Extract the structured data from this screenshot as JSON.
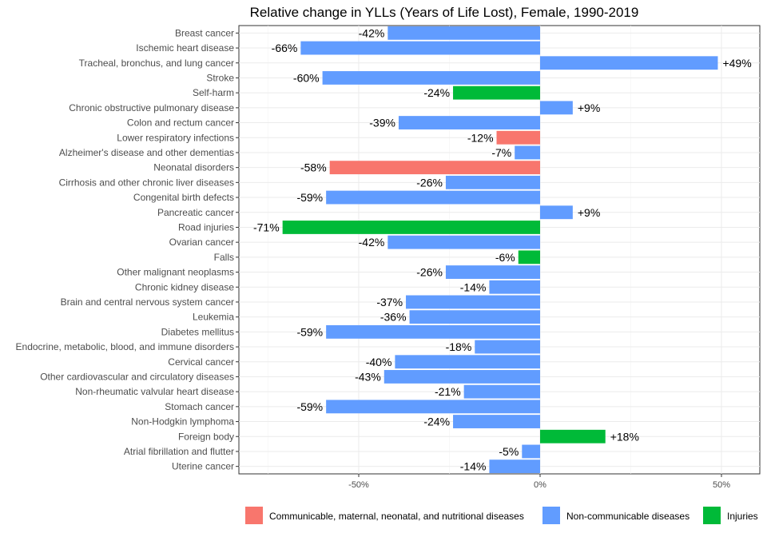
{
  "chart_data": {
    "type": "bar",
    "orientation": "horizontal",
    "title": "Relative change in YLLs (Years of Life Lost), Female, 1990-2019",
    "xlabel": "",
    "ylabel": "",
    "xlim": [
      -84,
      61
    ],
    "x_ticks": [
      -50,
      0,
      50
    ],
    "x_tick_labels": [
      "-50%",
      "0%",
      "50%"
    ],
    "grid": true,
    "legend_position": "bottom-right",
    "legend": [
      {
        "key": "cmnn",
        "label": "Communicable, maternal, neonatal, and nutritional diseases",
        "color": "#F8766D"
      },
      {
        "key": "ncd",
        "label": "Non-communicable diseases",
        "color": "#619CFF"
      },
      {
        "key": "inj",
        "label": "Injuries",
        "color": "#00BA38"
      }
    ],
    "bars": [
      {
        "category": "Breast cancer",
        "value": -42,
        "label": "-42%",
        "group": "ncd"
      },
      {
        "category": "Ischemic heart disease",
        "value": -66,
        "label": "-66%",
        "group": "ncd"
      },
      {
        "category": "Tracheal, bronchus, and lung cancer",
        "value": 49,
        "label": "+49%",
        "group": "ncd"
      },
      {
        "category": "Stroke",
        "value": -60,
        "label": "-60%",
        "group": "ncd"
      },
      {
        "category": "Self-harm",
        "value": -24,
        "label": "-24%",
        "group": "inj"
      },
      {
        "category": "Chronic obstructive pulmonary disease",
        "value": 9,
        "label": "+9%",
        "group": "ncd"
      },
      {
        "category": "Colon and rectum cancer",
        "value": -39,
        "label": "-39%",
        "group": "ncd"
      },
      {
        "category": "Lower respiratory infections",
        "value": -12,
        "label": "-12%",
        "group": "cmnn"
      },
      {
        "category": "Alzheimer's disease and other dementias",
        "value": -7,
        "label": "-7%",
        "group": "ncd"
      },
      {
        "category": "Neonatal disorders",
        "value": -58,
        "label": "-58%",
        "group": "cmnn"
      },
      {
        "category": "Cirrhosis and other chronic liver diseases",
        "value": -26,
        "label": "-26%",
        "group": "ncd"
      },
      {
        "category": "Congenital birth defects",
        "value": -59,
        "label": "-59%",
        "group": "ncd"
      },
      {
        "category": "Pancreatic cancer",
        "value": 9,
        "label": "+9%",
        "group": "ncd"
      },
      {
        "category": "Road injuries",
        "value": -71,
        "label": "-71%",
        "group": "inj"
      },
      {
        "category": "Ovarian cancer",
        "value": -42,
        "label": "-42%",
        "group": "ncd"
      },
      {
        "category": "Falls",
        "value": -6,
        "label": "-6%",
        "group": "inj"
      },
      {
        "category": "Other malignant neoplasms",
        "value": -26,
        "label": "-26%",
        "group": "ncd"
      },
      {
        "category": "Chronic kidney disease",
        "value": -14,
        "label": "-14%",
        "group": "ncd"
      },
      {
        "category": "Brain and central nervous system cancer",
        "value": -37,
        "label": "-37%",
        "group": "ncd"
      },
      {
        "category": "Leukemia",
        "value": -36,
        "label": "-36%",
        "group": "ncd"
      },
      {
        "category": "Diabetes mellitus",
        "value": -59,
        "label": "-59%",
        "group": "ncd"
      },
      {
        "category": "Endocrine, metabolic, blood, and immune disorders",
        "value": -18,
        "label": "-18%",
        "group": "ncd"
      },
      {
        "category": "Cervical cancer",
        "value": -40,
        "label": "-40%",
        "group": "ncd"
      },
      {
        "category": "Other cardiovascular and circulatory diseases",
        "value": -43,
        "label": "-43%",
        "group": "ncd"
      },
      {
        "category": "Non-rheumatic valvular heart disease",
        "value": -21,
        "label": "-21%",
        "group": "ncd"
      },
      {
        "category": "Stomach cancer",
        "value": -59,
        "label": "-59%",
        "group": "ncd"
      },
      {
        "category": "Non-Hodgkin lymphoma",
        "value": -24,
        "label": "-24%",
        "group": "ncd"
      },
      {
        "category": "Foreign body",
        "value": 18,
        "label": "+18%",
        "group": "inj"
      },
      {
        "category": "Atrial fibrillation and flutter",
        "value": -5,
        "label": "-5%",
        "group": "ncd"
      },
      {
        "category": "Uterine cancer",
        "value": -14,
        "label": "-14%",
        "group": "ncd"
      }
    ]
  }
}
